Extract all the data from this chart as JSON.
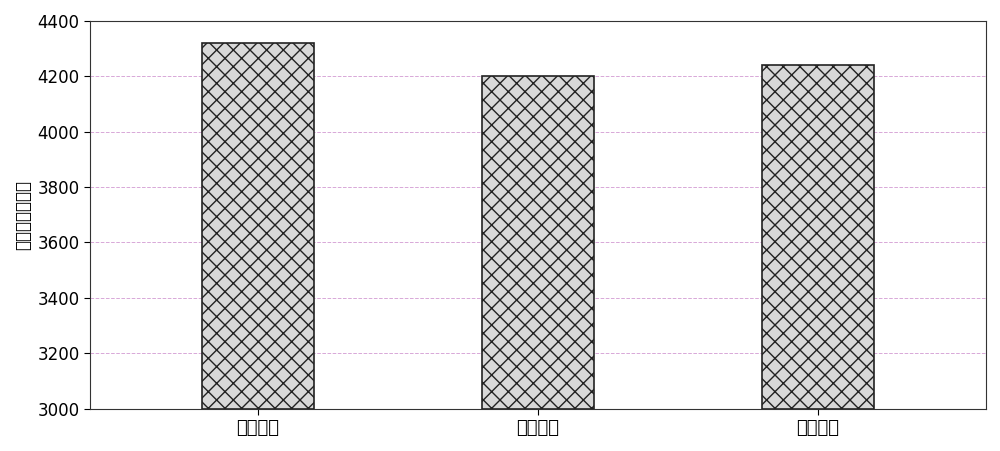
{
  "categories": [
    "实施例一",
    "实施例二",
    "实施例三"
  ],
  "values": [
    4320,
    4200,
    4240
  ],
  "bar_bottom": 3000,
  "bar_color": "#d8d8d8",
  "bar_edgecolor": "#222222",
  "hatch": "xx",
  "ylabel": "动稳定度（次）",
  "ylim": [
    3000,
    4400
  ],
  "yticks": [
    3000,
    3200,
    3400,
    3600,
    3800,
    4000,
    4200,
    4400
  ],
  "grid_color": "#d8a8d8",
  "grid_linewidth": 0.7,
  "grid_linestyle": "--",
  "background_color": "#ffffff",
  "bar_width": 0.4,
  "tick_fontsize": 12,
  "ylabel_fontsize": 12,
  "xtick_fontsize": 13
}
